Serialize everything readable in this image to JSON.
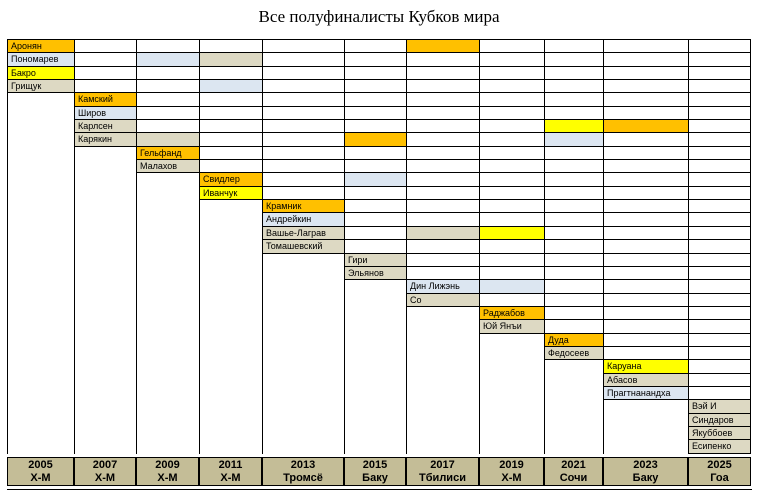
{
  "title": "Все полуфиналисты Кубков мира",
  "chart_data": {
    "type": "table",
    "title": "Все полуфиналисты Кубков мира",
    "palette": {
      "orange": "#FFC000",
      "yellow": "#FFFF00",
      "blue": "#DCE6F1",
      "tan": "#DDD9C3",
      "header_bg": "#C4BD97",
      "grid_line": "#000000"
    },
    "columns": [
      {
        "year": "2005",
        "venue": "Х-М"
      },
      {
        "year": "2007",
        "venue": "Х-М"
      },
      {
        "year": "2009",
        "venue": "Х-М"
      },
      {
        "year": "2011",
        "venue": "Х-М"
      },
      {
        "year": "2013",
        "venue": "Тромсё"
      },
      {
        "year": "2015",
        "venue": "Баку"
      },
      {
        "year": "2017",
        "venue": "Тбилиси"
      },
      {
        "year": "2019",
        "venue": "Х-М"
      },
      {
        "year": "2021",
        "venue": "Сочи"
      },
      {
        "year": "2023",
        "venue": "Баку"
      },
      {
        "year": "2025",
        "venue": "Гоа"
      }
    ],
    "rows": [
      {
        "name": "Аронян",
        "column": "2005",
        "color": "orange",
        "also": [
          {
            "year": "2017",
            "color": "orange"
          }
        ]
      },
      {
        "name": "Пономарев",
        "column": "2005",
        "color": "blue",
        "also": [
          {
            "year": "2009",
            "color": "blue"
          },
          {
            "year": "2011",
            "color": "tan"
          }
        ]
      },
      {
        "name": "Бакро",
        "column": "2005",
        "color": "yellow",
        "also": []
      },
      {
        "name": "Грищук",
        "column": "2005",
        "color": "tan",
        "also": [
          {
            "year": "2011",
            "color": "blue"
          }
        ]
      },
      {
        "name": "Камский",
        "column": "2007",
        "color": "orange",
        "also": []
      },
      {
        "name": "Широв",
        "column": "2007",
        "color": "blue",
        "also": []
      },
      {
        "name": "Карлсен",
        "column": "2007",
        "color": "tan",
        "also": [
          {
            "year": "2021",
            "color": "yellow"
          },
          {
            "year": "2023",
            "color": "orange"
          }
        ]
      },
      {
        "name": "Карякин",
        "column": "2007",
        "color": "tan",
        "also": [
          {
            "year": "2009",
            "color": "tan"
          },
          {
            "year": "2015",
            "color": "orange"
          },
          {
            "year": "2021",
            "color": "blue"
          }
        ]
      },
      {
        "name": "Гельфанд",
        "column": "2009",
        "color": "orange",
        "also": []
      },
      {
        "name": "Малахов",
        "column": "2009",
        "color": "tan",
        "also": []
      },
      {
        "name": "Свидлер",
        "column": "2011",
        "color": "orange",
        "also": [
          {
            "year": "2015",
            "color": "blue"
          }
        ]
      },
      {
        "name": "Иванчук",
        "column": "2011",
        "color": "yellow",
        "also": []
      },
      {
        "name": "Крамник",
        "column": "2013",
        "color": "orange",
        "also": []
      },
      {
        "name": "Андрейкин",
        "column": "2013",
        "color": "blue",
        "also": []
      },
      {
        "name": "Вашье-Лаграв",
        "column": "2013",
        "color": "tan",
        "also": [
          {
            "year": "2017",
            "color": "tan"
          },
          {
            "year": "2019",
            "color": "yellow"
          }
        ]
      },
      {
        "name": "Томашевский",
        "column": "2013",
        "color": "tan",
        "also": []
      },
      {
        "name": "Гири",
        "column": "2015",
        "color": "tan",
        "also": []
      },
      {
        "name": "Эльянов",
        "column": "2015",
        "color": "tan",
        "also": []
      },
      {
        "name": "Дин Лижэнь",
        "column": "2017",
        "color": "blue",
        "also": [
          {
            "year": "2019",
            "color": "blue"
          }
        ]
      },
      {
        "name": "Со",
        "column": "2017",
        "color": "tan",
        "also": []
      },
      {
        "name": "Раджабов",
        "column": "2019",
        "color": "orange",
        "also": []
      },
      {
        "name": "Юй Янъи",
        "column": "2019",
        "color": "tan",
        "also": []
      },
      {
        "name": "Дуда",
        "column": "2021",
        "color": "orange",
        "also": []
      },
      {
        "name": "Федосеев",
        "column": "2021",
        "color": "tan",
        "also": []
      },
      {
        "name": "Каруана",
        "column": "2023",
        "color": "yellow",
        "also": []
      },
      {
        "name": "Абасов",
        "column": "2023",
        "color": "tan",
        "also": []
      },
      {
        "name": "Прагтнанандха",
        "column": "2023",
        "color": "blue",
        "also": []
      },
      {
        "name": "Вэй И",
        "column": "2025",
        "color": "tan",
        "also": []
      },
      {
        "name": "Синдаров",
        "column": "2025",
        "color": "tan",
        "also": []
      },
      {
        "name": "Якуббоев",
        "column": "2025",
        "color": "tan",
        "also": []
      },
      {
        "name": "Есипенко",
        "column": "2025",
        "color": "tan",
        "also": []
      }
    ]
  }
}
